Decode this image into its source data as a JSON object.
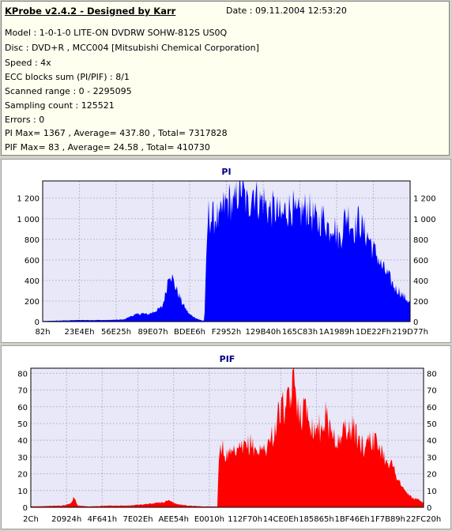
{
  "header": {
    "title": "KProbe v2.4.2 - Designed by Karr",
    "date": "Date : 09.11.2004 12:53:20",
    "lines": [
      "Model : 1-0-1-0 LITE-ON DVDRW SOHW-812S  US0Q",
      "Disc : DVD+R , MCC004 [Mitsubishi Chemical Corporation]",
      "Speed : 4x",
      "ECC blocks sum (PI/PIF) : 8/1",
      "Scanned range : 0 - 2295095",
      "Sampling count : 125521",
      "Errors : 0",
      "PI Max= 1367 , Average= 437.80 , Total= 7317828",
      "PIF Max= 83 , Average= 24.58 , Total= 410730"
    ]
  },
  "chart_data": [
    {
      "type": "area",
      "title": "PI",
      "color": "#0000ff",
      "ylim": [
        0,
        1367
      ],
      "yticks": [
        0,
        200,
        400,
        600,
        800,
        1000,
        1200
      ],
      "xticks": [
        "82h",
        "23E4Eh",
        "56E25h",
        "89E07h",
        "BDEE6h",
        "F2952h",
        "129B40h",
        "165C83h",
        "1A1989h",
        "1DE22Fh",
        "219D77h"
      ],
      "series": [
        {
          "x_positions": [
            0,
            0.1,
            0.18,
            0.22,
            0.245,
            0.27,
            0.285,
            0.3,
            0.315,
            0.325,
            0.335,
            0.345,
            0.36,
            0.38,
            0.39,
            0.4,
            0.415,
            0.425,
            0.435,
            0.44,
            0.45,
            0.46,
            0.475,
            0.48,
            0.49,
            0.5,
            0.51,
            0.52,
            0.53,
            0.54,
            0.55,
            0.56,
            0.57,
            0.58,
            0.59,
            0.6,
            0.61,
            0.62,
            0.63,
            0.64,
            0.65,
            0.66,
            0.67,
            0.68,
            0.69,
            0.7,
            0.71,
            0.72,
            0.73,
            0.74,
            0.75,
            0.76,
            0.77,
            0.78,
            0.79,
            0.8,
            0.81,
            0.82,
            0.83,
            0.84,
            0.85,
            0.86,
            0.87,
            0.88,
            0.89,
            0.9,
            0.91,
            0.92,
            0.93,
            0.94,
            0.95,
            0.96,
            0.97,
            0.98,
            0.99,
            1.0
          ],
          "values": [
            5,
            15,
            15,
            20,
            60,
            80,
            70,
            90,
            120,
            140,
            280,
            500,
            350,
            180,
            120,
            70,
            40,
            20,
            10,
            10,
            1050,
            1000,
            1020,
            950,
            1100,
            1150,
            1180,
            1100,
            1250,
            1320,
            1200,
            1100,
            1300,
            1250,
            1150,
            1200,
            1100,
            1080,
            1100,
            1050,
            1000,
            1080,
            1100,
            1120,
            1000,
            1050,
            1080,
            1100,
            1050,
            1000,
            950,
            1020,
            980,
            900,
            980,
            850,
            800,
            980,
            1050,
            950,
            900,
            1000,
            900,
            850,
            800,
            700,
            650,
            550,
            500,
            450,
            380,
            320,
            300,
            250,
            220,
            180
          ]
        }
      ]
    },
    {
      "type": "area",
      "title": "PIF",
      "color": "#ff0000",
      "ylim": [
        0,
        83
      ],
      "yticks": [
        0,
        10,
        20,
        30,
        40,
        50,
        60,
        70,
        80
      ],
      "xticks": [
        "2Ch",
        "20924h",
        "4F641h",
        "7E02Eh",
        "AEE54h",
        "E0010h",
        "112F70h",
        "14CE0Eh",
        "185865h",
        "1BF46Eh",
        "1F7B89h",
        "22FC20h"
      ],
      "series": [
        {
          "x_positions": [
            0,
            0.08,
            0.1,
            0.11,
            0.12,
            0.15,
            0.2,
            0.25,
            0.3,
            0.335,
            0.35,
            0.37,
            0.4,
            0.44,
            0.46,
            0.475,
            0.48,
            0.5,
            0.52,
            0.54,
            0.56,
            0.58,
            0.6,
            0.62,
            0.63,
            0.64,
            0.65,
            0.66,
            0.67,
            0.68,
            0.69,
            0.7,
            0.71,
            0.72,
            0.73,
            0.74,
            0.75,
            0.76,
            0.77,
            0.78,
            0.79,
            0.8,
            0.81,
            0.82,
            0.83,
            0.84,
            0.85,
            0.86,
            0.87,
            0.88,
            0.89,
            0.9,
            0.91,
            0.92,
            0.93,
            0.94,
            0.95,
            0.96,
            0.97,
            0.98,
            0.99,
            1.0
          ],
          "values": [
            0.5,
            1,
            2,
            6,
            1,
            0.5,
            1,
            1,
            2,
            3,
            4,
            2,
            1,
            0.5,
            0.5,
            0.5,
            38,
            30,
            32,
            35,
            38,
            33,
            36,
            45,
            55,
            60,
            58,
            65,
            75,
            62,
            55,
            60,
            55,
            45,
            50,
            45,
            55,
            48,
            45,
            38,
            40,
            50,
            45,
            48,
            42,
            38,
            35,
            45,
            40,
            38,
            36,
            30,
            28,
            25,
            20,
            15,
            10,
            8,
            6,
            5,
            4,
            3
          ]
        }
      ]
    }
  ]
}
